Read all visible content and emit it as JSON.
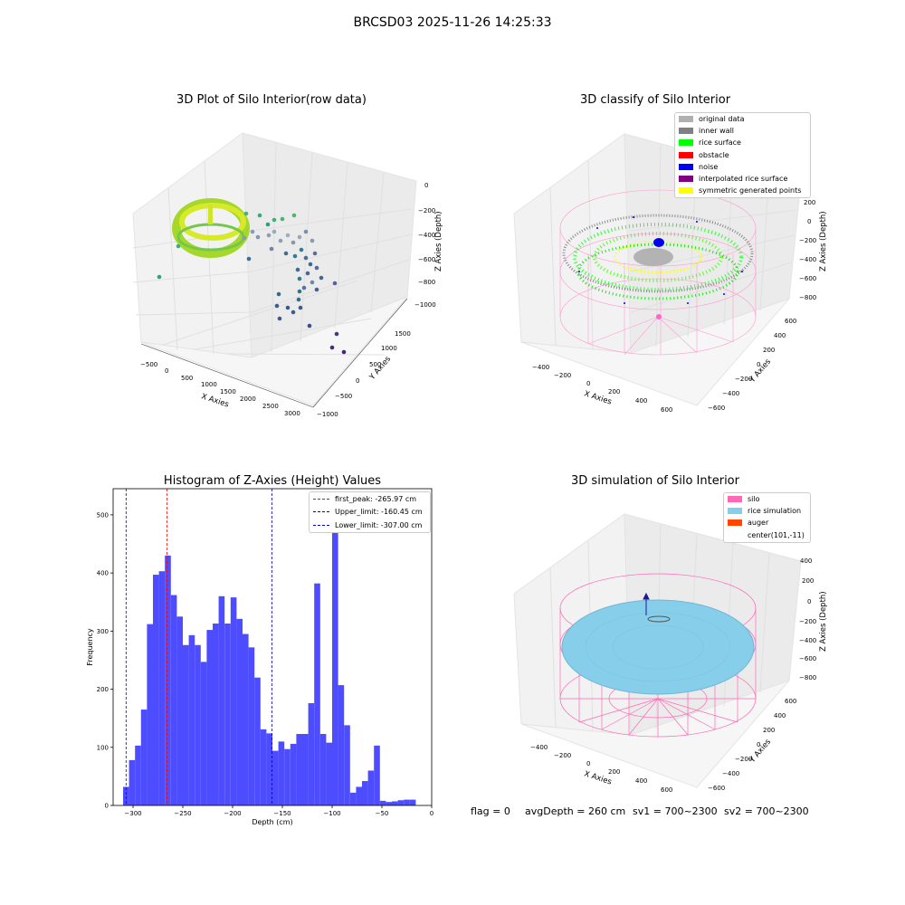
{
  "suptitle": "BRCSD03 2025-11-26 14:25:33",
  "footer": {
    "flag": "flag = 0",
    "avg_depth": "avgDepth = 260 cm",
    "sv1": "sv1 = 700~2300",
    "sv2": "sv2 = 700~2300"
  },
  "panels": {
    "raw": {
      "title": "3D Plot of Silo Interior(row data)",
      "xlabel": "X Axies",
      "ylabel": "Y Axies",
      "zlabel": "Z Axies (Depth)",
      "xticks": [
        "−500",
        "0",
        "500",
        "1000",
        "1500",
        "2000",
        "2500",
        "3000"
      ],
      "yticks": [
        "−1000",
        "−500",
        "0",
        "500",
        "1000",
        "1500"
      ],
      "zticks": [
        "0",
        "−200",
        "−400",
        "−600",
        "−800",
        "−1000"
      ]
    },
    "classify": {
      "title": "3D classify of Silo Interior",
      "xlabel": "X Axies",
      "ylabel": "Y Axies",
      "zlabel": "Z Axies (Depth)",
      "xticks": [
        "−400",
        "−200",
        "0",
        "200",
        "400",
        "600"
      ],
      "yticks": [
        "−600",
        "−400",
        "−200",
        "0",
        "200",
        "400",
        "600"
      ],
      "zticks": [
        "200",
        "0",
        "−200",
        "−400",
        "−600",
        "−800"
      ],
      "legend": [
        {
          "label": "original data",
          "color": "#b0b0b0"
        },
        {
          "label": "inner wall",
          "color": "#808080"
        },
        {
          "label": "rice surface",
          "color": "#00ff00"
        },
        {
          "label": "obstacle",
          "color": "#ff0000"
        },
        {
          "label": "noise",
          "color": "#0000ff"
        },
        {
          "label": "interpolated rice surface",
          "color": "#800080"
        },
        {
          "label": "symmetric generated points",
          "color": "#ffff00"
        }
      ]
    },
    "simulation": {
      "title": "3D simulation of Silo Interior",
      "xlabel": "X Axies",
      "ylabel": "Y Axies",
      "zlabel": "Z Axies (Depth)",
      "xticks": [
        "−400",
        "−200",
        "0",
        "200",
        "400",
        "600"
      ],
      "yticks": [
        "−600",
        "−400",
        "−200",
        "0",
        "200",
        "400",
        "600"
      ],
      "zticks": [
        "400",
        "200",
        "0",
        "−200",
        "−400",
        "−600",
        "−800"
      ],
      "legend": [
        {
          "label": "silo",
          "color": "#ff69b4"
        },
        {
          "label": "rice simulation",
          "color": "#87ceeb"
        },
        {
          "label": "auger",
          "color": "#ff4500"
        },
        {
          "label": "center(101,-11)",
          "color": "#ffffff"
        }
      ]
    }
  },
  "chart_data": [
    {
      "type": "histogram",
      "title": "Histogram of Z-Axies (Height) Values",
      "xlabel": "Depth (cm)",
      "ylabel": "Frequency",
      "xlim": [
        -320,
        0
      ],
      "ylim": [
        0,
        545
      ],
      "xticks": [
        -300,
        -250,
        -200,
        -150,
        -100,
        -50,
        0
      ],
      "yticks": [
        0,
        100,
        200,
        300,
        400,
        500
      ],
      "bar_color": "#4d4dff",
      "bin_start": -310,
      "bin_width": 6,
      "counts": [
        32,
        78,
        103,
        165,
        312,
        397,
        403,
        430,
        362,
        325,
        276,
        293,
        276,
        247,
        302,
        313,
        360,
        313,
        358,
        321,
        295,
        272,
        220,
        131,
        124,
        94,
        110,
        97,
        106,
        123,
        123,
        176,
        382,
        123,
        108,
        518,
        207,
        138,
        22,
        32,
        42,
        60,
        103,
        8,
        6,
        7,
        9,
        10,
        10
      ],
      "vlines": [
        {
          "label": "first_peak: -265.97 cm",
          "x": -265.97,
          "color": "#ff0000"
        },
        {
          "label": "Upper_limit: -160.45 cm",
          "x": -160.45,
          "color": "#0000cc"
        },
        {
          "label": "Lower_limit: -307.00 cm",
          "x": -307.0,
          "color": "#0000cc"
        }
      ]
    }
  ]
}
